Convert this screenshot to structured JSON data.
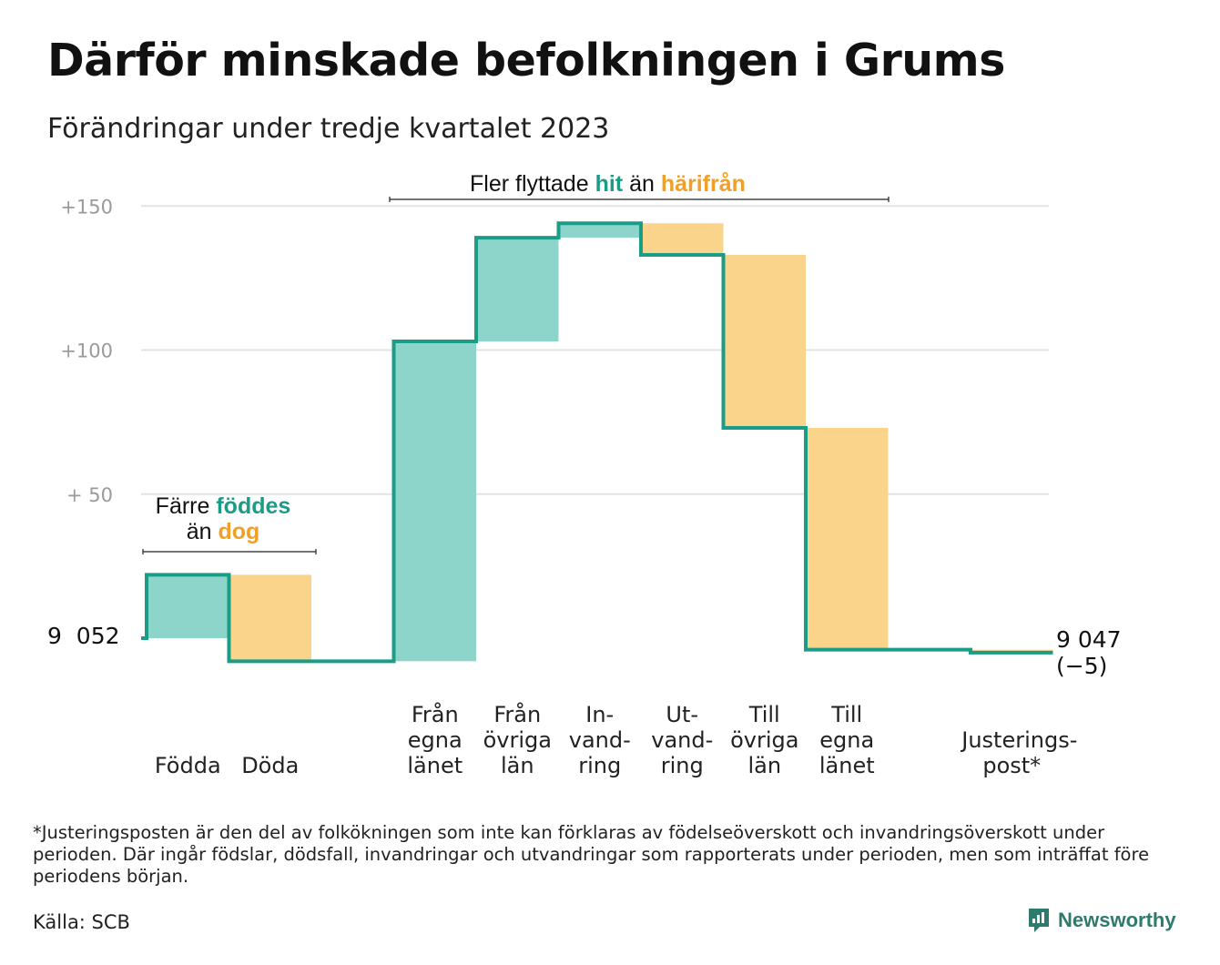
{
  "title": "Därför minskade befolkningen i Grums",
  "subtitle": "Förändringar under tredje kvartalet 2023",
  "annotations": {
    "moves": {
      "prefix": "Fler flyttade",
      "hit": "hit",
      "mid": "än",
      "harifran": "härifrån"
    },
    "births": {
      "line1_prefix": "Färre",
      "line1_emph": "föddes",
      "line2_prefix": "än",
      "line2_emph": "dog"
    }
  },
  "start_label": "9  052",
  "end_label": "9 047\n(−5)",
  "footnote": "*Justeringsposten är den del av folkökningen som inte kan förklaras av födelseöverskott och invandringsöverskott under perioden. Där ingår födslar, dödsfall, invandringar och utvandringar som rapporterats under perioden, men som inträffat före periodens början.",
  "source": "Källa: SCB",
  "brand": "Newsworthy",
  "colors": {
    "teal_line": "#1a9c86",
    "teal_fill": "#8dd5cb",
    "orange_fill": "#fbd48c",
    "grid": "#e3e3e3",
    "brand": "#2e7a6d"
  },
  "chart_data": {
    "type": "waterfall",
    "y_axis": {
      "ticks": [
        {
          "value": 150,
          "label": "+150"
        },
        {
          "value": 100,
          "label": "+100"
        },
        {
          "value": 50,
          "label": "+  50"
        }
      ],
      "ylim": [
        -18,
        160
      ],
      "grid": true
    },
    "baseline_population": 9052,
    "end_population": 9047,
    "net_change": -5,
    "steps": [
      {
        "label": "Födda",
        "change": 22,
        "sign": "positive"
      },
      {
        "label": "Döda",
        "change": -30,
        "sign": "negative"
      },
      {
        "label": "",
        "change": 0,
        "sign": "none"
      },
      {
        "label": "Från\negna\nlänet",
        "change": 111,
        "sign": "positive"
      },
      {
        "label": "Från\növriga\nlän",
        "change": 36,
        "sign": "positive"
      },
      {
        "label": "In-\nvand-\nring",
        "change": 5,
        "sign": "positive"
      },
      {
        "label": "Ut-\nvand-\nring",
        "change": -11,
        "sign": "negative"
      },
      {
        "label": "Till\növriga\nlän",
        "change": -60,
        "sign": "negative"
      },
      {
        "label": "Till\negna\nlänet",
        "change": -77,
        "sign": "negative"
      },
      {
        "label": "",
        "change": 0,
        "sign": "none"
      },
      {
        "label": "Justerings-\npost*",
        "change": -1,
        "sign": "negative"
      }
    ]
  }
}
